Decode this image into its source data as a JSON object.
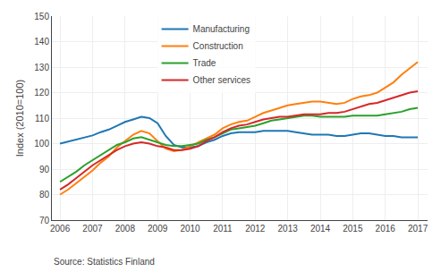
{
  "chart_data": {
    "type": "line",
    "ylabel": "Index (2010=100)",
    "source": "Source: Statistics Finland",
    "xlim": [
      2005.75,
      2017.3
    ],
    "ylim": [
      70,
      150
    ],
    "yticks": [
      70,
      80,
      90,
      100,
      110,
      120,
      130,
      140,
      150
    ],
    "xticks": [
      2006,
      2007,
      2008,
      2009,
      2010,
      2011,
      2012,
      2013,
      2014,
      2015,
      2016,
      2017
    ],
    "grid": true,
    "legend": "upper left",
    "x": [
      2006.0,
      2006.25,
      2006.5,
      2006.75,
      2007.0,
      2007.25,
      2007.5,
      2007.75,
      2008.0,
      2008.25,
      2008.5,
      2008.75,
      2009.0,
      2009.25,
      2009.5,
      2009.75,
      2010.0,
      2010.25,
      2010.5,
      2010.75,
      2011.0,
      2011.25,
      2011.5,
      2011.75,
      2012.0,
      2012.25,
      2012.5,
      2012.75,
      2013.0,
      2013.25,
      2013.5,
      2013.75,
      2014.0,
      2014.25,
      2014.5,
      2014.75,
      2015.0,
      2015.25,
      2015.5,
      2015.75,
      2016.0,
      2016.25,
      2016.5,
      2016.75,
      2017.0
    ],
    "series": [
      {
        "name": "Manufacturing",
        "values": [
          100.0,
          100.8,
          101.5,
          102.5,
          103.2,
          104.5,
          105.5,
          107.0,
          108.5,
          109.5,
          110.5,
          110.0,
          108.0,
          103.0,
          99.5,
          98.5,
          98.5,
          99.0,
          100.5,
          101.5,
          103.0,
          104.0,
          104.5,
          104.5,
          104.5,
          105.0,
          105.0,
          105.0,
          105.0,
          104.5,
          104.0,
          103.5,
          103.5,
          103.5,
          103.0,
          103.0,
          103.5,
          104.0,
          104.0,
          103.5,
          103.0,
          103.0,
          102.5,
          102.5,
          102.5
        ]
      },
      {
        "name": "Construction",
        "values": [
          80.0,
          82.0,
          84.5,
          87.0,
          89.5,
          92.5,
          95.0,
          98.5,
          101.0,
          103.5,
          105.0,
          104.0,
          101.0,
          98.0,
          97.0,
          97.5,
          99.0,
          100.5,
          102.0,
          103.5,
          106.0,
          107.5,
          108.5,
          109.0,
          110.5,
          112.0,
          113.0,
          114.0,
          115.0,
          115.5,
          116.0,
          116.5,
          116.5,
          116.0,
          115.5,
          116.0,
          117.5,
          118.5,
          119.0,
          120.0,
          122.0,
          124.0,
          127.0,
          129.5,
          132.0
        ]
      },
      {
        "name": "Trade",
        "values": [
          85.0,
          87.0,
          89.0,
          91.5,
          93.5,
          95.5,
          97.5,
          99.5,
          100.5,
          102.0,
          102.5,
          101.5,
          100.5,
          99.5,
          99.0,
          99.0,
          99.5,
          100.0,
          101.5,
          102.5,
          104.0,
          105.5,
          106.0,
          106.5,
          107.0,
          108.0,
          109.0,
          109.5,
          110.0,
          110.5,
          111.0,
          111.0,
          110.5,
          110.5,
          110.5,
          110.5,
          111.0,
          111.0,
          111.0,
          111.0,
          111.5,
          112.0,
          112.5,
          113.5,
          114.0
        ]
      },
      {
        "name": "Other services",
        "values": [
          82.0,
          84.0,
          86.5,
          89.0,
          91.5,
          93.5,
          95.5,
          97.5,
          99.0,
          100.0,
          100.5,
          100.0,
          99.0,
          98.5,
          97.5,
          97.5,
          98.0,
          99.0,
          101.0,
          102.5,
          104.5,
          106.0,
          107.0,
          107.5,
          108.5,
          109.5,
          110.0,
          110.5,
          110.5,
          111.0,
          111.5,
          111.5,
          111.5,
          112.0,
          112.0,
          112.5,
          113.5,
          114.5,
          115.5,
          116.0,
          117.0,
          118.0,
          119.0,
          120.0,
          120.5
        ]
      }
    ]
  }
}
